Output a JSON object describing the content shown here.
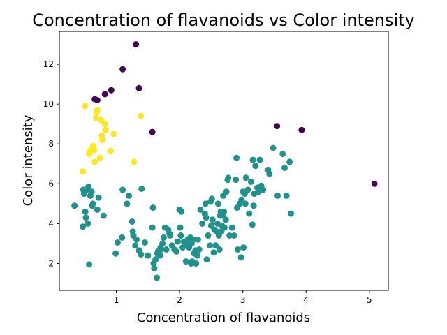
{
  "chart_data": {
    "type": "scatter",
    "title": "Concentration of flavanoids vs Color intensity",
    "xlabel": "Concentration of flavanoids",
    "ylabel": "Color intensity",
    "xlim": [
      0.1,
      5.3
    ],
    "ylim": [
      0.65,
      13.65
    ],
    "xticks": [
      1,
      2,
      3,
      4,
      5
    ],
    "yticks": [
      2,
      4,
      6,
      8,
      10,
      12
    ],
    "grid": false,
    "legend": "none",
    "colors": {
      "purple": "#440154",
      "teal": "#21918c",
      "yellow": "#fde725"
    },
    "series": [
      {
        "color": "#440154",
        "points": [
          [
            0.66,
            10.25
          ],
          [
            0.7,
            10.2
          ],
          [
            0.82,
            10.5
          ],
          [
            0.92,
            10.7
          ],
          [
            1.1,
            11.75
          ],
          [
            1.31,
            13.0
          ],
          [
            1.36,
            10.8
          ],
          [
            1.57,
            8.6
          ],
          [
            3.54,
            8.9
          ],
          [
            3.93,
            8.7
          ],
          [
            5.08,
            6.0
          ]
        ]
      },
      {
        "color": "#fde725",
        "points": [
          [
            0.47,
            6.62
          ],
          [
            0.51,
            9.9
          ],
          [
            0.57,
            7.5
          ],
          [
            0.58,
            7.6
          ],
          [
            0.6,
            7.7
          ],
          [
            0.63,
            7.9
          ],
          [
            0.65,
            7.7
          ],
          [
            0.66,
            7.1
          ],
          [
            0.68,
            9.3
          ],
          [
            0.69,
            9.6
          ],
          [
            0.7,
            9.7
          ],
          [
            0.74,
            7.3
          ],
          [
            0.76,
            9.2
          ],
          [
            0.77,
            8.4
          ],
          [
            0.78,
            8.2
          ],
          [
            0.82,
            9.0
          ],
          [
            0.83,
            8.7
          ],
          [
            0.91,
            7.65
          ],
          [
            0.96,
            8.5
          ],
          [
            1.28,
            7.1
          ],
          [
            1.39,
            9.4
          ]
        ]
      },
      {
        "color": "#21918c",
        "points": [
          [
            0.34,
            4.9
          ],
          [
            0.47,
            3.85
          ],
          [
            0.48,
            5.7
          ],
          [
            0.49,
            5.5
          ],
          [
            0.51,
            4.6
          ],
          [
            0.52,
            4.3
          ],
          [
            0.54,
            5.7
          ],
          [
            0.55,
            4.0
          ],
          [
            0.56,
            5.85
          ],
          [
            0.57,
            1.95
          ],
          [
            0.59,
            5.4
          ],
          [
            0.61,
            5.6
          ],
          [
            0.62,
            4.9
          ],
          [
            0.63,
            5.0
          ],
          [
            0.7,
            4.7
          ],
          [
            0.72,
            5.3
          ],
          [
            0.8,
            4.4
          ],
          [
            0.99,
            2.5
          ],
          [
            1.02,
            3.05
          ],
          [
            1.09,
            3.3
          ],
          [
            1.1,
            5.7
          ],
          [
            1.17,
            5.0
          ],
          [
            1.2,
            5.4
          ],
          [
            1.25,
            4.1
          ],
          [
            1.26,
            3.6
          ],
          [
            1.27,
            3.4
          ],
          [
            1.3,
            2.9
          ],
          [
            1.32,
            3.2
          ],
          [
            1.36,
            2.65
          ],
          [
            1.39,
            2.45
          ],
          [
            1.4,
            5.75
          ],
          [
            1.45,
            3.05
          ],
          [
            1.5,
            2.4
          ],
          [
            1.57,
            3.8
          ],
          [
            1.58,
            4.8
          ],
          [
            1.59,
            2.0
          ],
          [
            1.6,
            1.75
          ],
          [
            1.62,
            2.2
          ],
          [
            1.64,
            1.28
          ],
          [
            1.65,
            2.5
          ],
          [
            1.66,
            2.6
          ],
          [
            1.69,
            2.4
          ],
          [
            1.7,
            2.8
          ],
          [
            1.71,
            2.7
          ],
          [
            1.73,
            3.0
          ],
          [
            1.75,
            3.3
          ],
          [
            1.77,
            3.8
          ],
          [
            1.79,
            2.7
          ],
          [
            1.82,
            3.7
          ],
          [
            1.84,
            3.5
          ],
          [
            1.85,
            3.4
          ],
          [
            1.88,
            2.9
          ],
          [
            1.92,
            2.7
          ],
          [
            1.95,
            2.6
          ],
          [
            1.97,
            3.1
          ],
          [
            2.0,
            4.7
          ],
          [
            2.01,
            3.8
          ],
          [
            2.02,
            3.4
          ],
          [
            2.03,
            4.6
          ],
          [
            2.05,
            2.8
          ],
          [
            2.07,
            3.1
          ],
          [
            2.1,
            2.1
          ],
          [
            2.12,
            2.9
          ],
          [
            2.13,
            3.2
          ],
          [
            2.15,
            2.8
          ],
          [
            2.17,
            3.3
          ],
          [
            2.18,
            2.0
          ],
          [
            2.19,
            3.0
          ],
          [
            2.2,
            2.1
          ],
          [
            2.22,
            3.2
          ],
          [
            2.23,
            2.5
          ],
          [
            2.25,
            2.65
          ],
          [
            2.26,
            2.0
          ],
          [
            2.28,
            2.4
          ],
          [
            2.29,
            3.2
          ],
          [
            2.31,
            2.7
          ],
          [
            2.33,
            4.7
          ],
          [
            2.36,
            4.0
          ],
          [
            2.4,
            4.5
          ],
          [
            2.41,
            5.0
          ],
          [
            2.42,
            4.3
          ],
          [
            2.43,
            2.2
          ],
          [
            2.45,
            3.4
          ],
          [
            2.48,
            2.9
          ],
          [
            2.49,
            5.1
          ],
          [
            2.5,
            3.9
          ],
          [
            2.51,
            5.25
          ],
          [
            2.52,
            4.2
          ],
          [
            2.54,
            2.55
          ],
          [
            2.55,
            3.7
          ],
          [
            2.57,
            2.9
          ],
          [
            2.59,
            3.6
          ],
          [
            2.6,
            4.0
          ],
          [
            2.61,
            5.0
          ],
          [
            2.62,
            3.4
          ],
          [
            2.63,
            2.7
          ],
          [
            2.64,
            4.4
          ],
          [
            2.65,
            4.6
          ],
          [
            2.66,
            3.6
          ],
          [
            2.67,
            3.9
          ],
          [
            2.68,
            4.4
          ],
          [
            2.69,
            5.4
          ],
          [
            2.7,
            4.6
          ],
          [
            2.71,
            3.8
          ],
          [
            2.73,
            4.2
          ],
          [
            2.74,
            5.6
          ],
          [
            2.76,
            6.2
          ],
          [
            2.77,
            6.3
          ],
          [
            2.79,
            3.4
          ],
          [
            2.83,
            3.8
          ],
          [
            2.86,
            3.4
          ],
          [
            2.89,
            6.2
          ],
          [
            2.9,
            7.3
          ],
          [
            2.91,
            4.8
          ],
          [
            2.92,
            2.7
          ],
          [
            2.95,
            5.0
          ],
          [
            2.97,
            2.3
          ],
          [
            2.98,
            5.2
          ],
          [
            3.0,
            5.6
          ],
          [
            3.01,
            2.8
          ],
          [
            3.03,
            5.5
          ],
          [
            3.04,
            5.0
          ],
          [
            3.05,
            6.3
          ],
          [
            3.08,
            5.7
          ],
          [
            3.1,
            4.5
          ],
          [
            3.13,
            6.1
          ],
          [
            3.15,
            3.95
          ],
          [
            3.16,
            7.2
          ],
          [
            3.17,
            4.9
          ],
          [
            3.18,
            5.5
          ],
          [
            3.2,
            6.9
          ],
          [
            3.23,
            5.8
          ],
          [
            3.25,
            5.6
          ],
          [
            3.27,
            7.2
          ],
          [
            3.29,
            5.9
          ],
          [
            3.32,
            5.7
          ],
          [
            3.4,
            6.7
          ],
          [
            3.42,
            6.5
          ],
          [
            3.48,
            7.8
          ],
          [
            3.55,
            5.4
          ],
          [
            3.63,
            7.5
          ],
          [
            3.66,
            6.8
          ],
          [
            3.69,
            5.4
          ],
          [
            3.74,
            7.1
          ],
          [
            3.76,
            4.5
          ]
        ]
      }
    ]
  }
}
